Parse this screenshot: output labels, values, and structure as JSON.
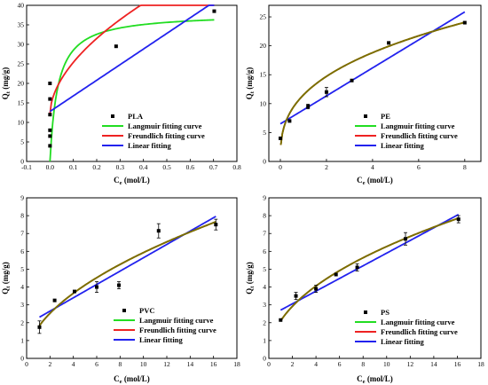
{
  "chart_data": [
    {
      "type": "scatter",
      "xlabel": "C",
      "xlabel_sub": "e",
      "xlabel_unit": " (mol/L)",
      "ylabel": "Q",
      "ylabel_sub": "t",
      "ylabel_unit": " (mg/g)",
      "xlim": [
        -0.1,
        0.8
      ],
      "ylim": [
        0,
        40
      ],
      "xticks": [
        "-0.1",
        "0.0",
        "0.1",
        "0.2",
        "0.3",
        "0.4",
        "0.5",
        "0.6",
        "0.7",
        "0.8"
      ],
      "yticks": [
        "0",
        "5",
        "10",
        "15",
        "20",
        "25",
        "30",
        "35",
        "40"
      ],
      "legend_position": "bottom-right",
      "series": [
        {
          "name": "PLA",
          "kind": "points",
          "color": "#000000",
          "x": [
            0,
            0,
            0,
            0,
            0,
            0,
            0.283,
            0.703
          ],
          "y": [
            4,
            6.5,
            8,
            12,
            16,
            20,
            29.5,
            38.5
          ],
          "err": [
            0,
            0,
            0,
            0,
            0,
            0,
            0,
            0
          ]
        },
        {
          "name": "Langmuir fitting curve",
          "kind": "langmuir",
          "color": "#22dd22",
          "qm": 38,
          "k": 30,
          "xmin": 0,
          "xmax": 0.703
        },
        {
          "name": "Freundlich fitting curve",
          "kind": "freundlich",
          "color": "#ee2222",
          "kf": 46.8,
          "n": 0.55,
          "b": 12.2,
          "xmin": 0,
          "xmax": 0.703
        },
        {
          "name": "Linear fitting",
          "kind": "linear",
          "color": "#2222ee",
          "slope": 40,
          "intercept": 12.8,
          "xmin": 0,
          "xmax": 0.703
        }
      ]
    },
    {
      "type": "scatter",
      "xlabel": "C",
      "xlabel_sub": "e",
      "xlabel_unit": "  (mol/L)",
      "ylabel": "Q",
      "ylabel_sub": "t",
      "ylabel_unit": "  (mg/g)",
      "xlim": [
        -0.5,
        8.7
      ],
      "ylim": [
        0,
        27
      ],
      "xticks": [
        "0",
        "2",
        "4",
        "6",
        "8"
      ],
      "yticks": [
        "0",
        "5",
        "10",
        "15",
        "20",
        "25"
      ],
      "legend_position": "bottom-right",
      "series": [
        {
          "name": "PE",
          "kind": "points",
          "color": "#000000",
          "x": [
            0,
            0.4,
            1.2,
            2.0,
            3.1,
            4.7,
            8.0
          ],
          "y": [
            4,
            7,
            9.5,
            12,
            14,
            20.5,
            24
          ],
          "err": [
            0,
            0,
            0.4,
            0.8,
            0,
            0,
            0
          ]
        },
        {
          "name": "Langmuir fitting curve",
          "kind": "power",
          "color": "#22dd22",
          "a": 11.5,
          "n": 0.355,
          "xmin": 0.02,
          "xmax": 8.0
        },
        {
          "name": "Freundlich fitting curve",
          "kind": "power",
          "color": "#ee2222",
          "a": 11.5,
          "n": 0.355,
          "xmin": 0.02,
          "xmax": 8.0
        },
        {
          "name": "Linear fitting",
          "kind": "linear",
          "color": "#2222ee",
          "slope": 2.42,
          "intercept": 6.5,
          "xmin": 0,
          "xmax": 8.0
        },
        {
          "name": "",
          "kind": "power",
          "color": "#7a7000",
          "a": 11.5,
          "n": 0.355,
          "xmin": 0.02,
          "xmax": 8.0
        }
      ]
    },
    {
      "type": "scatter",
      "xlabel": "C",
      "xlabel_sub": "e",
      "xlabel_unit": " (mol/L)",
      "ylabel": "Q",
      "ylabel_sub": "t",
      "ylabel_unit": " (mg/g)",
      "xlim": [
        0,
        18
      ],
      "ylim": [
        0,
        9
      ],
      "xticks": [
        "0",
        "2",
        "4",
        "6",
        "8",
        "10",
        "12",
        "14",
        "16",
        "18"
      ],
      "yticks": [
        "0",
        "1",
        "2",
        "3",
        "4",
        "5",
        "6",
        "7",
        "8",
        "9"
      ],
      "legend_position": "bottom-right",
      "series": [
        {
          "name": "PVC",
          "kind": "points",
          "color": "#000000",
          "x": [
            1.1,
            2.4,
            4.1,
            6.0,
            7.9,
            11.3,
            16.2
          ],
          "y": [
            1.75,
            3.25,
            3.75,
            4.0,
            4.1,
            7.15,
            7.5
          ],
          "err": [
            0.35,
            0,
            0,
            0.3,
            0.2,
            0.4,
            0.3
          ]
        },
        {
          "name": "Langmuir fitting curve",
          "kind": "power",
          "color": "#22dd22",
          "a": 1.75,
          "n": 0.53,
          "xmin": 1.1,
          "xmax": 16.2
        },
        {
          "name": "Freundlich fitting curve",
          "kind": "power",
          "color": "#ee2222",
          "a": 1.75,
          "n": 0.53,
          "xmin": 1.1,
          "xmax": 16.2
        },
        {
          "name": "Linear fitting",
          "kind": "linear",
          "color": "#2222ee",
          "slope": 0.374,
          "intercept": 1.9,
          "xmin": 1.1,
          "xmax": 16.2
        },
        {
          "name": "",
          "kind": "power",
          "color": "#7a7000",
          "a": 1.75,
          "n": 0.53,
          "xmin": 1.1,
          "xmax": 16.2
        }
      ]
    },
    {
      "type": "scatter",
      "xlabel": "C",
      "xlabel_sub": "e",
      "xlabel_unit": " (mol/L)",
      "ylabel": "Q",
      "ylabel_sub": "t",
      "ylabel_unit": " (mg/g)",
      "xlim": [
        0,
        18
      ],
      "ylim": [
        0,
        9
      ],
      "xticks": [
        "0",
        "2",
        "4",
        "6",
        "8",
        "10",
        "12",
        "14",
        "16",
        "18"
      ],
      "yticks": [
        "0",
        "1",
        "2",
        "3",
        "4",
        "5",
        "6",
        "7",
        "8",
        "9"
      ],
      "legend_position": "bottom-right",
      "series": [
        {
          "name": "PS",
          "kind": "points",
          "color": "#000000",
          "x": [
            1.0,
            2.3,
            4.0,
            5.7,
            7.5,
            11.6,
            16.1
          ],
          "y": [
            2.15,
            3.5,
            3.9,
            4.7,
            5.1,
            6.7,
            7.8
          ],
          "err": [
            0,
            0.2,
            0.2,
            0,
            0.2,
            0.35,
            0.2
          ]
        },
        {
          "name": "Langmuir fitting curve",
          "kind": "power",
          "color": "#22dd22",
          "a": 2.1,
          "n": 0.475,
          "xmin": 1.0,
          "xmax": 16.1
        },
        {
          "name": "Freundlich fitting curve",
          "kind": "power",
          "color": "#ee2222",
          "a": 2.1,
          "n": 0.475,
          "xmin": 1.0,
          "xmax": 16.1
        },
        {
          "name": "Linear fitting",
          "kind": "linear",
          "color": "#2222ee",
          "slope": 0.355,
          "intercept": 2.35,
          "xmin": 1.0,
          "xmax": 16.1
        },
        {
          "name": "",
          "kind": "power",
          "color": "#7a7000",
          "a": 2.1,
          "n": 0.475,
          "xmin": 1.0,
          "xmax": 16.1
        }
      ]
    }
  ]
}
